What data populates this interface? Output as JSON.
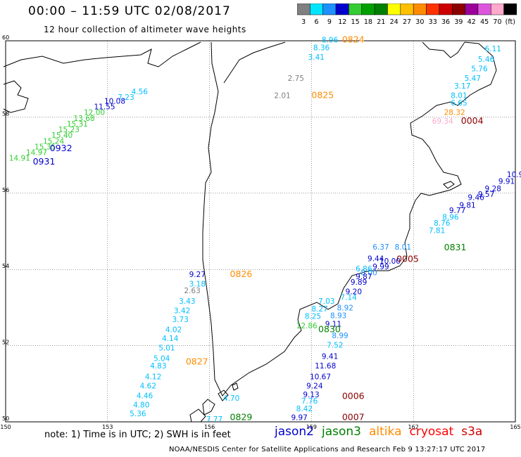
{
  "header": {
    "title": "00:00 – 11:59 UTC 02/08/2017",
    "subtitle": "12 hour collection of altimeter wave heights"
  },
  "colorbar": {
    "labels": [
      "3",
      "6",
      "9",
      "12",
      "15",
      "18",
      "21",
      "24",
      "27",
      "30",
      "33",
      "36",
      "39",
      "42",
      "45",
      "70",
      "(ft)"
    ],
    "colors": [
      "#808080",
      "#00e5ff",
      "#1e90ff",
      "#0000cd",
      "#32cd32",
      "#00a000",
      "#008000",
      "#ffff00",
      "#ffc000",
      "#ff8c00",
      "#ff3300",
      "#cc0000",
      "#8b0000",
      "#9b009b",
      "#dd55dd",
      "#ffaacc",
      "#000000"
    ]
  },
  "map": {
    "lat_labels": [
      "60",
      "58",
      "56",
      "54",
      "52",
      "50"
    ],
    "lon_labels": [
      "150",
      "153",
      "156",
      "159",
      "162",
      "165"
    ],
    "lat_range": [
      50,
      60
    ],
    "lon_range": [
      150,
      165
    ]
  },
  "time_labels": [
    {
      "text": "0824",
      "color": "#ff8c00",
      "lon": 159.9,
      "lat": 59.95
    },
    {
      "text": "0825",
      "color": "#ff8c00",
      "lon": 159.0,
      "lat": 58.5
    },
    {
      "text": "0004",
      "color": "#8b0000",
      "lon": 163.4,
      "lat": 57.82
    },
    {
      "text": "0932",
      "color": "#0000cd",
      "lon": 151.3,
      "lat": 57.1
    },
    {
      "text": "0931",
      "color": "#0000cd",
      "lon": 150.8,
      "lat": 56.75
    },
    {
      "text": "0831",
      "color": "#008000",
      "lon": 162.9,
      "lat": 54.5
    },
    {
      "text": "0005",
      "color": "#8b0000",
      "lon": 161.5,
      "lat": 54.2
    },
    {
      "text": "0826",
      "color": "#ff8c00",
      "lon": 156.6,
      "lat": 53.8
    },
    {
      "text": "0830",
      "color": "#008000",
      "lon": 159.2,
      "lat": 52.35
    },
    {
      "text": "0827",
      "color": "#ff8c00",
      "lon": 155.3,
      "lat": 51.5
    },
    {
      "text": "0006",
      "color": "#8b0000",
      "lon": 159.9,
      "lat": 50.6
    },
    {
      "text": "0829",
      "color": "#008000",
      "lon": 156.6,
      "lat": 50.05
    },
    {
      "text": "0007",
      "color": "#8b0000",
      "lon": 159.9,
      "lat": 50.05
    }
  ],
  "wave_heights": [
    {
      "v": "8.96",
      "c": "#00bfff",
      "lon": 159.3,
      "lat": 59.95
    },
    {
      "v": "8.36",
      "c": "#00bfff",
      "lon": 159.05,
      "lat": 59.75
    },
    {
      "v": "3.41",
      "c": "#00bfff",
      "lon": 158.9,
      "lat": 59.5
    },
    {
      "v": "2.75",
      "c": "#808080",
      "lon": 158.3,
      "lat": 58.95
    },
    {
      "v": "2.01",
      "c": "#808080",
      "lon": 157.9,
      "lat": 58.5
    },
    {
      "v": "6.11",
      "c": "#00bfff",
      "lon": 164.1,
      "lat": 59.72
    },
    {
      "v": "5.46",
      "c": "#00bfff",
      "lon": 163.9,
      "lat": 59.45
    },
    {
      "v": "5.76",
      "c": "#00bfff",
      "lon": 163.7,
      "lat": 59.2
    },
    {
      "v": "5.47",
      "c": "#00bfff",
      "lon": 163.5,
      "lat": 58.95
    },
    {
      "v": "3.17",
      "c": "#00bfff",
      "lon": 163.2,
      "lat": 58.75
    },
    {
      "v": "8.01",
      "c": "#00bfff",
      "lon": 163.1,
      "lat": 58.5
    },
    {
      "v": "6.65",
      "c": "#00bfff",
      "lon": 163.1,
      "lat": 58.3
    },
    {
      "v": "28.32",
      "c": "#ff8c00",
      "lon": 162.9,
      "lat": 58.05
    },
    {
      "v": "69.34",
      "c": "#ffaacc",
      "lon": 162.55,
      "lat": 57.82
    },
    {
      "v": "4.56",
      "c": "#00bfff",
      "lon": 153.7,
      "lat": 58.6
    },
    {
      "v": "7.23",
      "c": "#00bfff",
      "lon": 153.3,
      "lat": 58.45
    },
    {
      "v": "10.08",
      "c": "#0000cd",
      "lon": 152.9,
      "lat": 58.35
    },
    {
      "v": "11.55",
      "c": "#0000cd",
      "lon": 152.6,
      "lat": 58.2
    },
    {
      "v": "12.00",
      "c": "#32cd32",
      "lon": 152.3,
      "lat": 58.05
    },
    {
      "v": "13.68",
      "c": "#32cd32",
      "lon": 152.0,
      "lat": 57.9
    },
    {
      "v": "15.31",
      "c": "#32cd32",
      "lon": 151.8,
      "lat": 57.75
    },
    {
      "v": "15.23",
      "c": "#32cd32",
      "lon": 151.55,
      "lat": 57.6
    },
    {
      "v": "15.40",
      "c": "#32cd32",
      "lon": 151.35,
      "lat": 57.45
    },
    {
      "v": "15.24",
      "c": "#32cd32",
      "lon": 151.1,
      "lat": 57.3
    },
    {
      "v": "15.35",
      "c": "#32cd32",
      "lon": 150.85,
      "lat": 57.15
    },
    {
      "v": "14.97",
      "c": "#32cd32",
      "lon": 150.6,
      "lat": 57.0
    },
    {
      "v": "14.91",
      "c": "#32cd32",
      "lon": 150.1,
      "lat": 56.85
    },
    {
      "v": "10.9",
      "c": "#0000cd",
      "lon": 164.75,
      "lat": 56.42
    },
    {
      "v": "9.91",
      "c": "#0000cd",
      "lon": 164.5,
      "lat": 56.25
    },
    {
      "v": "9.28",
      "c": "#0000cd",
      "lon": 164.1,
      "lat": 56.05
    },
    {
      "v": "9.57",
      "c": "#0000cd",
      "lon": 163.9,
      "lat": 55.9
    },
    {
      "v": "9.46",
      "c": "#0000cd",
      "lon": 163.6,
      "lat": 55.82
    },
    {
      "v": "9.81",
      "c": "#0000cd",
      "lon": 163.35,
      "lat": 55.62
    },
    {
      "v": "9.77",
      "c": "#0000cd",
      "lon": 163.05,
      "lat": 55.48
    },
    {
      "v": "8.96",
      "c": "#00bfff",
      "lon": 162.85,
      "lat": 55.3
    },
    {
      "v": "8.76",
      "c": "#00bfff",
      "lon": 162.6,
      "lat": 55.15
    },
    {
      "v": "7.81",
      "c": "#00bfff",
      "lon": 162.45,
      "lat": 54.95
    },
    {
      "v": "6.37",
      "c": "#1e90ff",
      "lon": 160.8,
      "lat": 54.52
    },
    {
      "v": "8.01",
      "c": "#1e90ff",
      "lon": 161.45,
      "lat": 54.52
    },
    {
      "v": "9.44",
      "c": "#0000cd",
      "lon": 160.65,
      "lat": 54.22
    },
    {
      "v": "10.00",
      "c": "#0000cd",
      "lon": 161.0,
      "lat": 54.15
    },
    {
      "v": "9.99",
      "c": "#0000cd",
      "lon": 160.8,
      "lat": 54.0
    },
    {
      "v": "8.00",
      "c": "#1e90ff",
      "lon": 160.45,
      "lat": 53.85
    },
    {
      "v": "6.86",
      "c": "#00bfff",
      "lon": 160.3,
      "lat": 53.95
    },
    {
      "v": "9.87",
      "c": "#0000cd",
      "lon": 160.3,
      "lat": 53.75
    },
    {
      "v": "9.89",
      "c": "#0000cd",
      "lon": 160.15,
      "lat": 53.6
    },
    {
      "v": "9.20",
      "c": "#0000cd",
      "lon": 160.0,
      "lat": 53.35
    },
    {
      "v": "7.14",
      "c": "#00bfff",
      "lon": 159.85,
      "lat": 53.2
    },
    {
      "v": "8.92",
      "c": "#1e90ff",
      "lon": 159.75,
      "lat": 52.92
    },
    {
      "v": "8.93",
      "c": "#1e90ff",
      "lon": 159.55,
      "lat": 52.72
    },
    {
      "v": "9.11",
      "c": "#0000cd",
      "lon": 159.4,
      "lat": 52.5
    },
    {
      "v": "7.03",
      "c": "#00bfff",
      "lon": 159.2,
      "lat": 53.1
    },
    {
      "v": "8.27",
      "c": "#00bfff",
      "lon": 159.0,
      "lat": 52.9
    },
    {
      "v": "8.25",
      "c": "#00bfff",
      "lon": 158.8,
      "lat": 52.7
    },
    {
      "v": "12.86",
      "c": "#32cd32",
      "lon": 158.55,
      "lat": 52.45
    },
    {
      "v": "8.99",
      "c": "#1e90ff",
      "lon": 159.6,
      "lat": 52.2
    },
    {
      "v": "7.52",
      "c": "#00bfff",
      "lon": 159.45,
      "lat": 51.95
    },
    {
      "v": "9.41",
      "c": "#0000cd",
      "lon": 159.3,
      "lat": 51.65
    },
    {
      "v": "11.68",
      "c": "#0000cd",
      "lon": 159.1,
      "lat": 51.4
    },
    {
      "v": "10.67",
      "c": "#0000cd",
      "lon": 158.95,
      "lat": 51.12
    },
    {
      "v": "9.24",
      "c": "#0000cd",
      "lon": 158.85,
      "lat": 50.88
    },
    {
      "v": "9.13",
      "c": "#0000cd",
      "lon": 158.75,
      "lat": 50.65
    },
    {
      "v": "7.76",
      "c": "#00bfff",
      "lon": 158.7,
      "lat": 50.48
    },
    {
      "v": "8.42",
      "c": "#00bfff",
      "lon": 158.55,
      "lat": 50.28
    },
    {
      "v": "9.97",
      "c": "#0000cd",
      "lon": 158.4,
      "lat": 50.05
    },
    {
      "v": "9.27",
      "c": "#0000cd",
      "lon": 155.4,
      "lat": 53.8
    },
    {
      "v": "3.18",
      "c": "#00bfff",
      "lon": 155.4,
      "lat": 53.55
    },
    {
      "v": "2.63",
      "c": "#808080",
      "lon": 155.25,
      "lat": 53.38
    },
    {
      "v": "3.43",
      "c": "#00bfff",
      "lon": 155.1,
      "lat": 53.1
    },
    {
      "v": "3.42",
      "c": "#00bfff",
      "lon": 154.95,
      "lat": 52.85
    },
    {
      "v": "3.73",
      "c": "#00bfff",
      "lon": 154.9,
      "lat": 52.62
    },
    {
      "v": "4.02",
      "c": "#00bfff",
      "lon": 154.7,
      "lat": 52.35
    },
    {
      "v": "4.14",
      "c": "#00bfff",
      "lon": 154.6,
      "lat": 52.12
    },
    {
      "v": "5.01",
      "c": "#00bfff",
      "lon": 154.5,
      "lat": 51.87
    },
    {
      "v": "5.04",
      "c": "#00bfff",
      "lon": 154.35,
      "lat": 51.6
    },
    {
      "v": "4.83",
      "c": "#00bfff",
      "lon": 154.25,
      "lat": 51.4
    },
    {
      "v": "4.12",
      "c": "#00bfff",
      "lon": 154.1,
      "lat": 51.12
    },
    {
      "v": "4.62",
      "c": "#00bfff",
      "lon": 153.95,
      "lat": 50.88
    },
    {
      "v": "4.46",
      "c": "#00bfff",
      "lon": 153.85,
      "lat": 50.62
    },
    {
      "v": "4.80",
      "c": "#00bfff",
      "lon": 153.75,
      "lat": 50.38
    },
    {
      "v": "5.36",
      "c": "#00bfff",
      "lon": 153.65,
      "lat": 50.15
    },
    {
      "v": "4.70",
      "c": "#00bfff",
      "lon": 156.4,
      "lat": 50.55
    },
    {
      "v": "7.77",
      "c": "#00bfff",
      "lon": 155.9,
      "lat": 50.0
    }
  ],
  "note": "note: 1) Time is in UTC; 2) SWH is in feet",
  "legend": [
    {
      "label": "jason2",
      "color": "#0000cd"
    },
    {
      "label": "jason3",
      "color": "#008000"
    },
    {
      "label": "altika",
      "color": "#ff8c00"
    },
    {
      "label": "cryosat",
      "color": "#ff0000"
    },
    {
      "label": "s3a",
      "color": "#cc0000"
    }
  ],
  "footer": "NOAA/NESDIS Center for Satellite Applications and Research    Feb  9 13:27:17 UTC 2017"
}
